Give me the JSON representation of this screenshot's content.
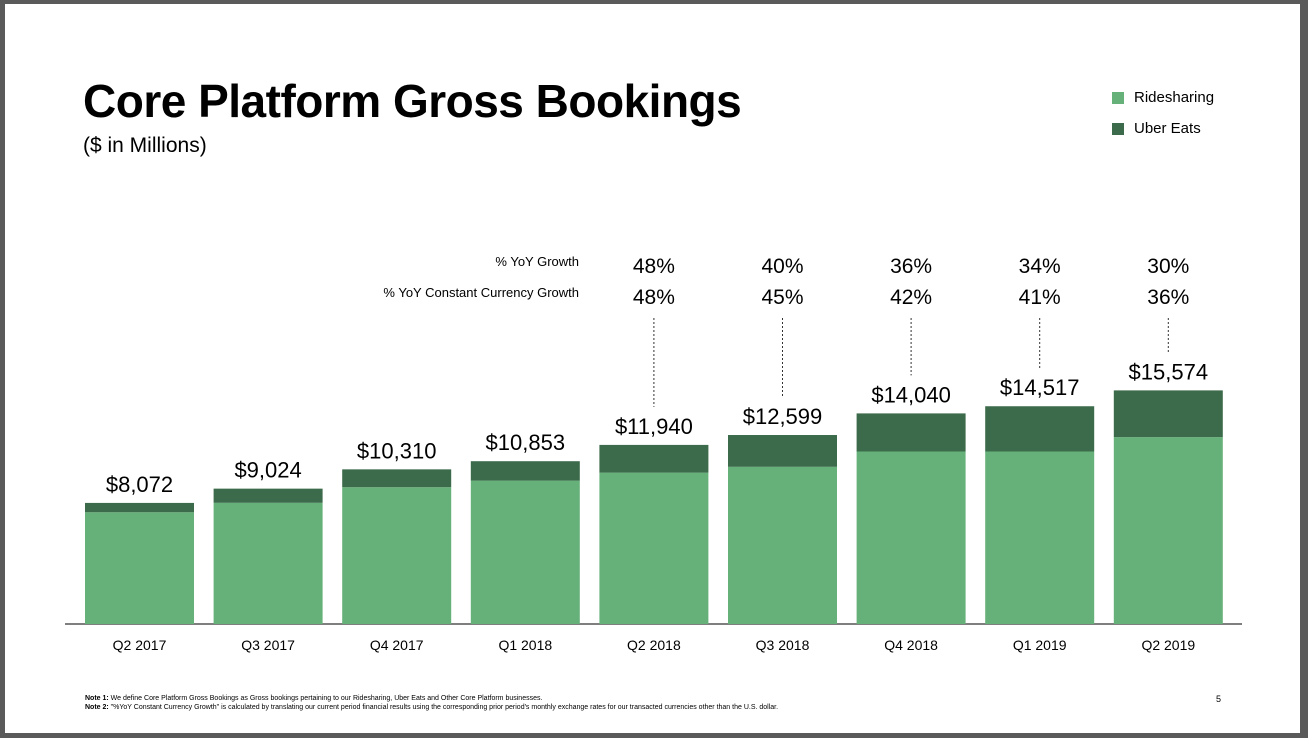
{
  "title": "Core Platform Gross Bookings",
  "subtitle": "($ in Millions)",
  "legend": {
    "ridesharing": "Ridesharing",
    "eats": "Uber Eats"
  },
  "colors": {
    "ridesharing": "#66b17a",
    "eats": "#3c6b4b",
    "axis": "#555555"
  },
  "row_labels": {
    "yoy": "% YoY Growth",
    "cc": "% YoY Constant Currency Growth"
  },
  "chart_data": {
    "type": "bar",
    "stacked": true,
    "title": "Core Platform Gross Bookings",
    "subtitle": "($ in Millions)",
    "categories": [
      "Q2 2017",
      "Q3 2017",
      "Q4 2017",
      "Q1 2018",
      "Q2 2018",
      "Q3 2018",
      "Q4 2018",
      "Q1 2019",
      "Q2 2019"
    ],
    "totals": [
      8072,
      9024,
      10310,
      10853,
      11940,
      12599,
      14040,
      14517,
      15574
    ],
    "total_labels": [
      "$8,072",
      "$9,024",
      "$10,310",
      "$10,853",
      "$11,940",
      "$12,599",
      "$14,040",
      "$14,517",
      "$15,574"
    ],
    "series": [
      {
        "name": "Ridesharing",
        "values": [
          7450,
          8080,
          9120,
          9560,
          10090,
          10480,
          11500,
          11500,
          12460
        ]
      },
      {
        "name": "Uber Eats",
        "values": [
          622,
          944,
          1190,
          1293,
          1850,
          2119,
          2540,
          3017,
          3114
        ]
      }
    ],
    "yoy_growth": [
      "",
      "",
      "",
      "",
      "48%",
      "40%",
      "36%",
      "34%",
      "30%"
    ],
    "yoy_cc_growth": [
      "",
      "",
      "",
      "",
      "48%",
      "45%",
      "42%",
      "41%",
      "36%"
    ],
    "ylim": [
      0,
      16000
    ],
    "legend_position": "top-right",
    "grid": false
  },
  "notes": [
    {
      "label": "Note 1:",
      "text": " We define Core Platform Gross Bookings as Gross bookings pertaining to our Ridesharing, Uber Eats and Other Core Platform businesses."
    },
    {
      "label": "Note 2:",
      "text": " \"%YoY Constant Currency Growth\" is calculated by translating our current period financial results using the corresponding prior period's monthly exchange rates for our transacted currencies other than the U.S. dollar."
    }
  ],
  "page_number": "5"
}
